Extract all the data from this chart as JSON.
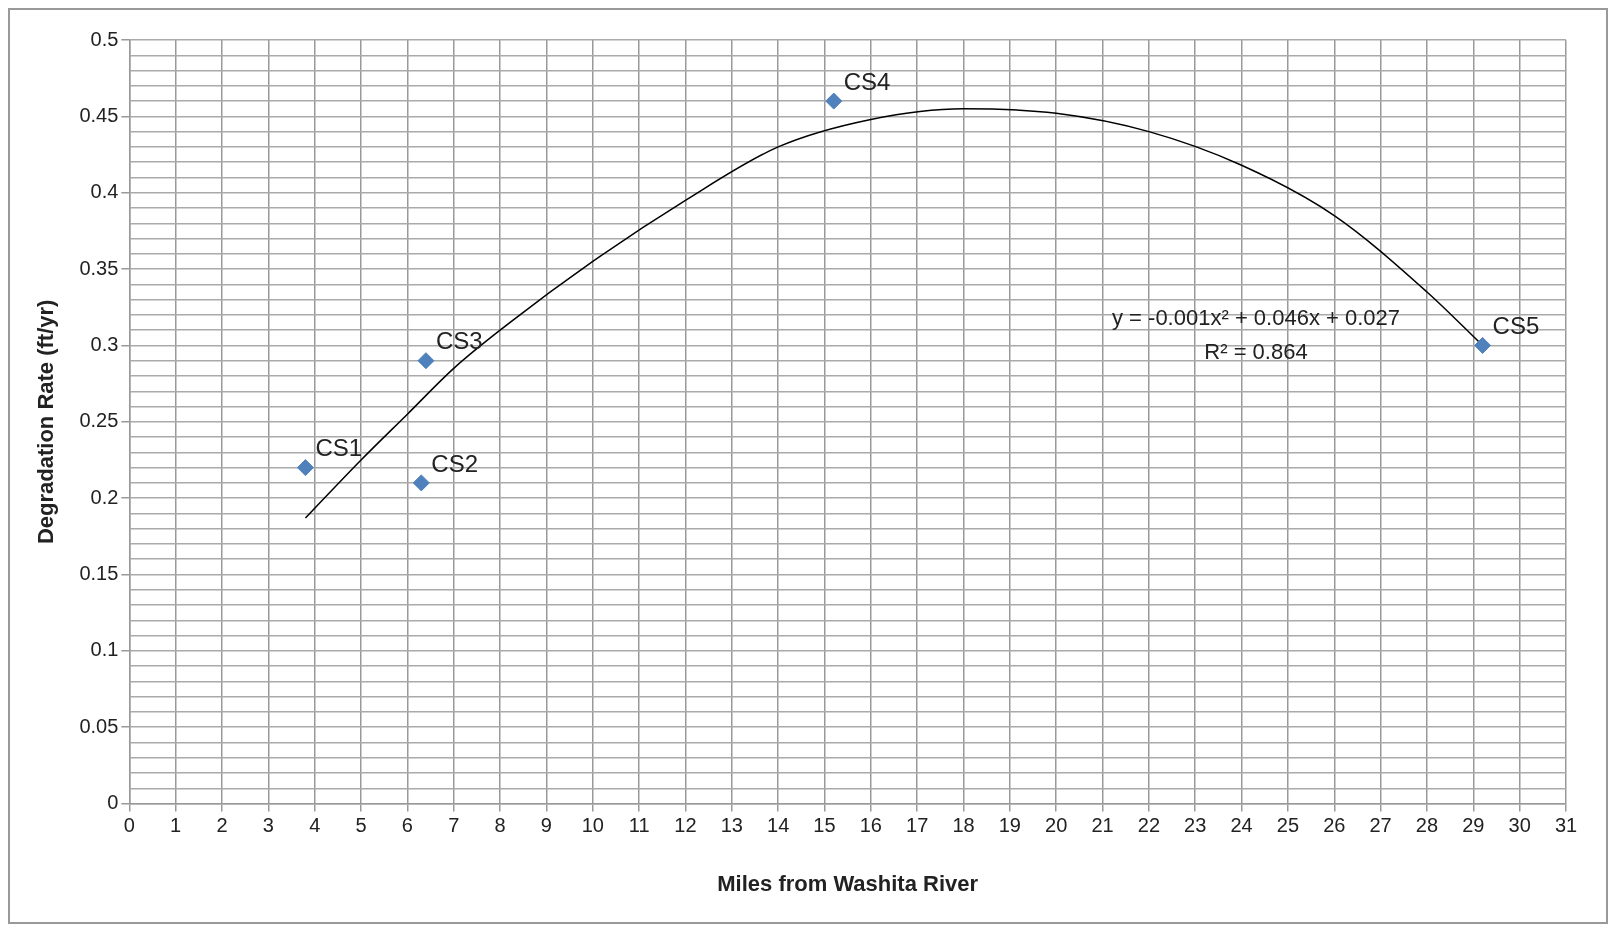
{
  "chart_data": {
    "type": "scatter",
    "xlabel": "Miles from Washita River",
    "ylabel": "Degradation Rate (ft/yr)",
    "xlim": [
      0,
      31
    ],
    "xticks": [
      0,
      1,
      2,
      3,
      4,
      5,
      6,
      7,
      8,
      9,
      10,
      11,
      12,
      13,
      14,
      15,
      16,
      17,
      18,
      19,
      20,
      21,
      22,
      23,
      24,
      25,
      26,
      27,
      28,
      29,
      30,
      31
    ],
    "ylim": [
      0,
      0.5
    ],
    "yticks": [
      0,
      {
        "value": 0.01,
        "label": null
      },
      {
        "value": 0.02,
        "label": null
      },
      {
        "value": 0.03,
        "label": null
      },
      {
        "value": 0.04,
        "label": null
      },
      0.05,
      {
        "value": 0.06,
        "label": null
      },
      {
        "value": 0.07,
        "label": null
      },
      {
        "value": 0.08,
        "label": null
      },
      {
        "value": 0.09,
        "label": null
      },
      0.1,
      {
        "value": 0.11,
        "label": null
      },
      {
        "value": 0.12,
        "label": null
      },
      {
        "value": 0.13,
        "label": null
      },
      {
        "value": 0.14,
        "label": null
      },
      0.15,
      {
        "value": 0.16,
        "label": null
      },
      {
        "value": 0.17,
        "label": null
      },
      {
        "value": 0.18,
        "label": null
      },
      {
        "value": 0.19,
        "label": null
      },
      0.2,
      {
        "value": 0.21,
        "label": null
      },
      {
        "value": 0.22,
        "label": null
      },
      {
        "value": 0.23,
        "label": null
      },
      {
        "value": 0.24,
        "label": null
      },
      0.25,
      {
        "value": 0.26,
        "label": null
      },
      {
        "value": 0.27,
        "label": null
      },
      {
        "value": 0.28,
        "label": null
      },
      {
        "value": 0.29,
        "label": null
      },
      0.3,
      {
        "value": 0.31,
        "label": null
      },
      {
        "value": 0.32,
        "label": null
      },
      {
        "value": 0.33,
        "label": null
      },
      {
        "value": 0.34,
        "label": null
      },
      0.35,
      {
        "value": 0.36,
        "label": null
      },
      {
        "value": 0.37,
        "label": null
      },
      {
        "value": 0.38,
        "label": null
      },
      {
        "value": 0.39,
        "label": null
      },
      0.4,
      {
        "value": 0.41,
        "label": null
      },
      {
        "value": 0.42,
        "label": null
      },
      {
        "value": 0.43,
        "label": null
      },
      {
        "value": 0.44,
        "label": null
      },
      0.45,
      {
        "value": 0.46,
        "label": null
      },
      {
        "value": 0.47,
        "label": null
      },
      {
        "value": 0.48,
        "label": null
      },
      {
        "value": 0.49,
        "label": null
      },
      0.5
    ],
    "grid": true,
    "marker": "diamond",
    "series": [
      {
        "color": "#4f81bd",
        "x": [
          3.8,
          6.3,
          6.4,
          15.2,
          29.2
        ],
        "values": [
          0.22,
          0.21,
          0.29,
          0.46,
          0.3
        ]
      },
      {
        "type": "line",
        "color": "#000000",
        "marker": "none",
        "line_style": "solid",
        "x": [
          3.8,
          5,
          6,
          7,
          8,
          10,
          12,
          14,
          16,
          18,
          20,
          22,
          24,
          26,
          28,
          29.2
        ],
        "values": [
          0.187,
          0.225,
          0.255,
          0.285,
          0.31,
          0.355,
          0.395,
          0.43,
          0.448,
          0.455,
          0.452,
          0.44,
          0.418,
          0.385,
          0.335,
          0.3
        ]
      }
    ],
    "annotations": [
      {
        "text": "CS1",
        "x": 3.8,
        "y": 0.22
      },
      {
        "text": "CS2",
        "x": 6.3,
        "y": 0.21
      },
      {
        "text": "CS3",
        "x": 6.4,
        "y": 0.29
      },
      {
        "text": "CS4",
        "x": 15.2,
        "y": 0.46
      },
      {
        "text": "CS5",
        "x": 29.2,
        "y": 0.3
      },
      "y = -0.001x² + 0.046x + 0.027",
      "R² = 0.864"
    ]
  }
}
